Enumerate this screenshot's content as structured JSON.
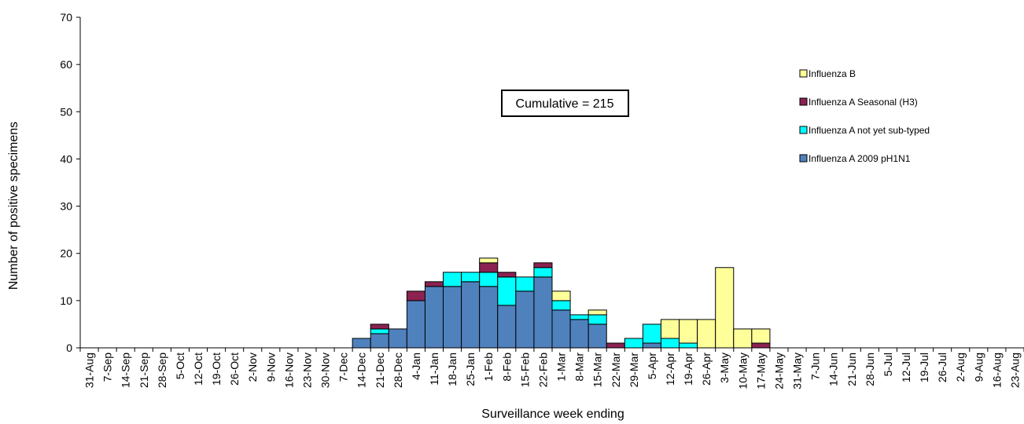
{
  "chart_data": {
    "type": "bar",
    "stacked": true,
    "title": "",
    "xlabel": "Surveillance week ending",
    "ylabel": "Number of positive specimens",
    "ylim": [
      0,
      70
    ],
    "yticks": [
      0,
      10,
      20,
      30,
      40,
      50,
      60,
      70
    ],
    "grid": false,
    "legend_position": "right",
    "annotation": "Cumulative = 215",
    "categories": [
      "31-Aug",
      "7-Sep",
      "14-Sep",
      "21-Sep",
      "28-Sep",
      "5-Oct",
      "12-Oct",
      "19-Oct",
      "26-Oct",
      "2-Nov",
      "9-Nov",
      "16-Nov",
      "23-Nov",
      "30-Nov",
      "7-Dec",
      "14-Dec",
      "21-Dec",
      "28-Dec",
      "4-Jan",
      "11-Jan",
      "18-Jan",
      "25-Jan",
      "1-Feb",
      "8-Feb",
      "15-Feb",
      "22-Feb",
      "1-Mar",
      "8-Mar",
      "15-Mar",
      "22-Mar",
      "29-Mar",
      "5-Apr",
      "12-Apr",
      "19-Apr",
      "26-Apr",
      "3-May",
      "10-May",
      "17-May",
      "24-May",
      "31-May",
      "7-Jun",
      "14-Jun",
      "21-Jun",
      "28-Jun",
      "5-Jul",
      "12-Jul",
      "19-Jul",
      "26-Jul",
      "2-Aug",
      "9-Aug",
      "16-Aug",
      "23-Aug"
    ],
    "series": [
      {
        "name": "Influenza A 2009 pH1N1",
        "color": "#4F81BD",
        "values": [
          0,
          0,
          0,
          0,
          0,
          0,
          0,
          0,
          0,
          0,
          0,
          0,
          0,
          0,
          0,
          2,
          3,
          4,
          10,
          13,
          13,
          14,
          13,
          9,
          12,
          15,
          8,
          6,
          5,
          0,
          0,
          1,
          0,
          0,
          0,
          0,
          0,
          0,
          0,
          0,
          0,
          0,
          0,
          0,
          0,
          0,
          0,
          0,
          0,
          0,
          0,
          0
        ]
      },
      {
        "name": "Influenza A not yet sub-typed",
        "color": "#00FFFF",
        "values": [
          0,
          0,
          0,
          0,
          0,
          0,
          0,
          0,
          0,
          0,
          0,
          0,
          0,
          0,
          0,
          0,
          1,
          0,
          0,
          0,
          3,
          2,
          3,
          6,
          3,
          2,
          2,
          1,
          2,
          0,
          2,
          4,
          2,
          1,
          0,
          0,
          0,
          0,
          0,
          0,
          0,
          0,
          0,
          0,
          0,
          0,
          0,
          0,
          0,
          0,
          0,
          0
        ]
      },
      {
        "name": "Influenza A Seasonal (H3)",
        "color": "#8B2252",
        "values": [
          0,
          0,
          0,
          0,
          0,
          0,
          0,
          0,
          0,
          0,
          0,
          0,
          0,
          0,
          0,
          0,
          1,
          0,
          2,
          1,
          0,
          0,
          2,
          1,
          0,
          1,
          0,
          0,
          0,
          1,
          0,
          0,
          0,
          0,
          0,
          0,
          0,
          1,
          0,
          0,
          0,
          0,
          0,
          0,
          0,
          0,
          0,
          0,
          0,
          0,
          0,
          0
        ]
      },
      {
        "name": "Influenza B",
        "color": "#FFFF99",
        "values": [
          0,
          0,
          0,
          0,
          0,
          0,
          0,
          0,
          0,
          0,
          0,
          0,
          0,
          0,
          0,
          0,
          0,
          0,
          0,
          0,
          0,
          0,
          1,
          0,
          0,
          0,
          2,
          0,
          1,
          0,
          0,
          0,
          4,
          5,
          6,
          17,
          4,
          3,
          0,
          0,
          0,
          0,
          0,
          0,
          0,
          0,
          0,
          0,
          0,
          0,
          0,
          0
        ]
      }
    ],
    "legend_order": [
      3,
      2,
      1,
      0
    ]
  }
}
